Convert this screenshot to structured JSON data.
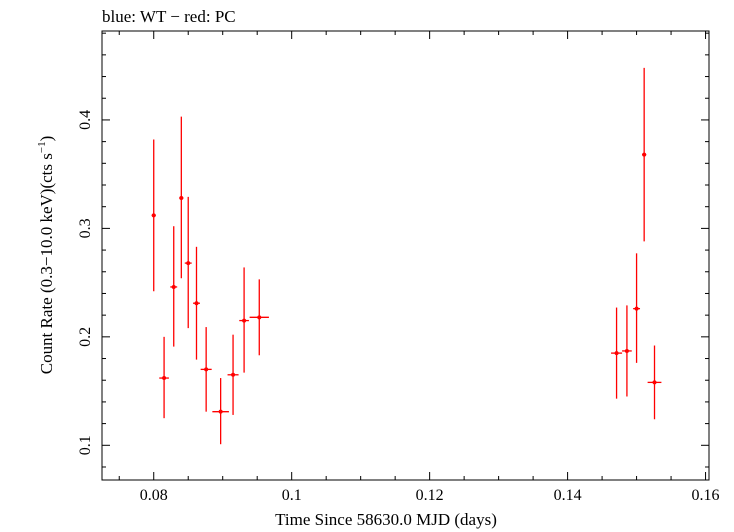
{
  "chart_data": {
    "type": "scatter",
    "title": "blue: WT − red: PC",
    "xlabel": "Time Since 58630.0 MJD (days)",
    "ylabel_parts": {
      "prefix": "Count Rate (0.3−10.0 keV)(cts s",
      "sup": "−1",
      "suffix": ")"
    },
    "xlim": [
      0.0725,
      0.1605
    ],
    "ylim": [
      0.068,
      0.482
    ],
    "x_ticks": [
      0.08,
      0.1,
      0.12,
      0.14,
      0.16
    ],
    "x_tick_labels": [
      "0.08",
      "0.1",
      "0.12",
      "0.14",
      "0.16"
    ],
    "x_minor_step": 0.005,
    "y_ticks": [
      0.1,
      0.2,
      0.3,
      0.4
    ],
    "y_tick_labels": [
      "0.1",
      "0.2",
      "0.3",
      "0.4"
    ],
    "y_minor_step": 0.02,
    "grid": false,
    "series": [
      {
        "color": "#ff0000",
        "points": [
          {
            "x": 0.08,
            "y": 0.312,
            "yerr_lo": 0.07,
            "yerr_hi": 0.07,
            "xerr": 0.0003
          },
          {
            "x": 0.0815,
            "y": 0.162,
            "yerr_lo": 0.037,
            "yerr_hi": 0.038,
            "xerr": 0.0007
          },
          {
            "x": 0.0829,
            "y": 0.246,
            "yerr_lo": 0.055,
            "yerr_hi": 0.056,
            "xerr": 0.0005
          },
          {
            "x": 0.084,
            "y": 0.328,
            "yerr_lo": 0.074,
            "yerr_hi": 0.075,
            "xerr": 0.0003
          },
          {
            "x": 0.085,
            "y": 0.268,
            "yerr_lo": 0.06,
            "yerr_hi": 0.061,
            "xerr": 0.0005
          },
          {
            "x": 0.0862,
            "y": 0.231,
            "yerr_lo": 0.052,
            "yerr_hi": 0.052,
            "xerr": 0.0005
          },
          {
            "x": 0.0876,
            "y": 0.17,
            "yerr_lo": 0.039,
            "yerr_hi": 0.039,
            "xerr": 0.0008
          },
          {
            "x": 0.0897,
            "y": 0.131,
            "yerr_lo": 0.03,
            "yerr_hi": 0.031,
            "xerr": 0.0012
          },
          {
            "x": 0.0915,
            "y": 0.165,
            "yerr_lo": 0.037,
            "yerr_hi": 0.037,
            "xerr": 0.0008
          },
          {
            "x": 0.0931,
            "y": 0.215,
            "yerr_lo": 0.048,
            "yerr_hi": 0.049,
            "xerr": 0.0007
          },
          {
            "x": 0.0953,
            "y": 0.218,
            "yerr_lo": 0.035,
            "yerr_hi": 0.035,
            "xerr": 0.0014
          },
          {
            "x": 0.1471,
            "y": 0.185,
            "yerr_lo": 0.042,
            "yerr_hi": 0.042,
            "xerr": 0.0008
          },
          {
            "x": 0.1486,
            "y": 0.187,
            "yerr_lo": 0.042,
            "yerr_hi": 0.042,
            "xerr": 0.0007
          },
          {
            "x": 0.15,
            "y": 0.226,
            "yerr_lo": 0.05,
            "yerr_hi": 0.051,
            "xerr": 0.0005
          },
          {
            "x": 0.1511,
            "y": 0.368,
            "yerr_lo": 0.08,
            "yerr_hi": 0.08,
            "xerr": 0.0003
          },
          {
            "x": 0.1526,
            "y": 0.158,
            "yerr_lo": 0.034,
            "yerr_hi": 0.034,
            "xerr": 0.001
          }
        ]
      }
    ]
  }
}
